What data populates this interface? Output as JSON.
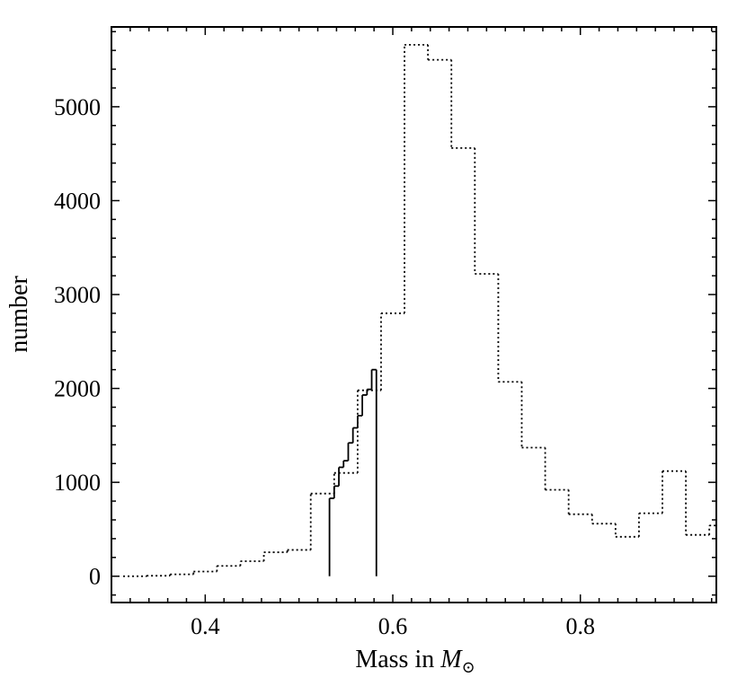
{
  "chart_data": {
    "type": "histogram",
    "xlabel": "Mass in ",
    "xlabel_math": "M",
    "xlabel_sub": "⊙",
    "ylabel": "number",
    "xlim": [
      0.3,
      0.945
    ],
    "ylim": [
      -280,
      5850
    ],
    "grid": false,
    "x_ticks": [
      0.4,
      0.6,
      0.8
    ],
    "x_tick_labels": [
      "0.4",
      "0.6",
      "0.8"
    ],
    "y_ticks": [
      0,
      1000,
      2000,
      3000,
      4000,
      5000
    ],
    "y_tick_labels": [
      "0",
      "1000",
      "2000",
      "3000",
      "4000",
      "5000"
    ],
    "series": [
      {
        "style": "dotted",
        "bin_edges": [
          0.3125,
          0.3375,
          0.3625,
          0.3875,
          0.4125,
          0.4375,
          0.4625,
          0.4875,
          0.5125,
          0.5375,
          0.5625,
          0.5875,
          0.6125,
          0.6375,
          0.6625,
          0.6875,
          0.7125,
          0.7375,
          0.7625,
          0.7875,
          0.8125,
          0.8375,
          0.8625,
          0.8875,
          0.9125,
          0.9375,
          0.945
        ],
        "counts": [
          0,
          5,
          20,
          50,
          110,
          160,
          255,
          280,
          880,
          1100,
          1980,
          2800,
          5660,
          5500,
          4560,
          3220,
          2070,
          1370,
          920,
          660,
          560,
          420,
          670,
          1120,
          440,
          540
        ]
      },
      {
        "style": "solid",
        "bin_edges": [
          0.5325,
          0.5375,
          0.5425,
          0.5475,
          0.5525,
          0.5575,
          0.5625,
          0.5675,
          0.5725,
          0.5775,
          0.5825,
          0.5875
        ],
        "counts": [
          830,
          960,
          1160,
          1230,
          1420,
          1580,
          1710,
          1930,
          1990,
          2200,
          0
        ]
      }
    ]
  }
}
